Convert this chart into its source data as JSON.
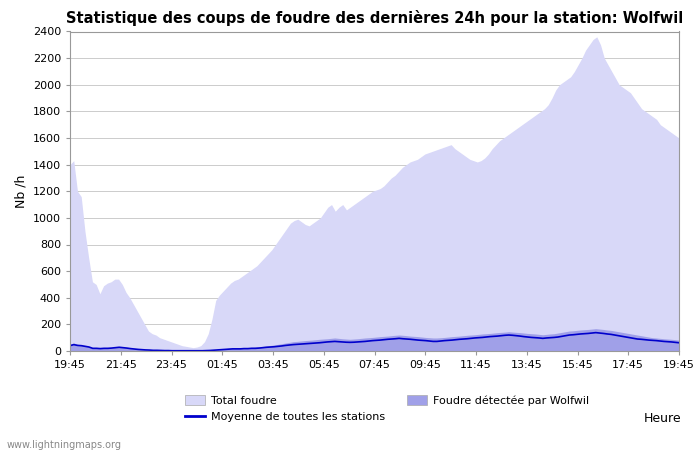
{
  "title": "Statistique des coups de foudre des dernières 24h pour la station: Wolfwil",
  "xlabel": "Heure",
  "ylabel": "Nb /h",
  "xlim_labels": [
    "19:45",
    "21:45",
    "23:45",
    "01:45",
    "03:45",
    "05:45",
    "07:45",
    "09:45",
    "11:45",
    "13:45",
    "15:45",
    "17:45",
    "19:45"
  ],
  "ylim": [
    0,
    2400
  ],
  "yticks": [
    0,
    200,
    400,
    600,
    800,
    1000,
    1200,
    1400,
    1600,
    1800,
    2000,
    2200,
    2400
  ],
  "color_total": "#d8d8f8",
  "color_station": "#a0a0e8",
  "color_mean": "#0000cc",
  "bg_color": "#ffffff",
  "grid_color": "#cccccc",
  "watermark": "www.lightningmaps.org",
  "legend_total": "Total foudre",
  "legend_mean": "Moyenne de toutes les stations",
  "legend_station": "Foudre détectée par Wolfwil",
  "total_foudre": [
    1400,
    1430,
    1200,
    1160,
    900,
    700,
    520,
    500,
    430,
    490,
    510,
    520,
    540,
    540,
    500,
    440,
    400,
    350,
    300,
    250,
    200,
    150,
    130,
    120,
    100,
    90,
    80,
    70,
    60,
    50,
    40,
    35,
    30,
    25,
    30,
    40,
    70,
    130,
    240,
    380,
    420,
    450,
    480,
    510,
    530,
    540,
    560,
    580,
    600,
    620,
    640,
    670,
    700,
    730,
    760,
    800,
    840,
    880,
    920,
    960,
    980,
    990,
    970,
    950,
    940,
    960,
    980,
    1000,
    1040,
    1080,
    1100,
    1050,
    1080,
    1100,
    1060,
    1080,
    1100,
    1120,
    1140,
    1160,
    1180,
    1200,
    1210,
    1220,
    1240,
    1270,
    1300,
    1320,
    1350,
    1380,
    1400,
    1420,
    1430,
    1440,
    1460,
    1480,
    1490,
    1500,
    1510,
    1520,
    1530,
    1540,
    1550,
    1520,
    1500,
    1480,
    1460,
    1440,
    1430,
    1420,
    1430,
    1450,
    1480,
    1520,
    1550,
    1580,
    1600,
    1620,
    1640,
    1660,
    1680,
    1700,
    1720,
    1740,
    1760,
    1780,
    1800,
    1820,
    1850,
    1900,
    1960,
    2000,
    2020,
    2040,
    2060,
    2100,
    2150,
    2200,
    2260,
    2300,
    2340,
    2360,
    2300,
    2200,
    2150,
    2100,
    2050,
    2000,
    1980,
    1960,
    1940,
    1900,
    1860,
    1820,
    1800,
    1780,
    1760,
    1740,
    1700,
    1680,
    1660,
    1640,
    1620,
    1600
  ],
  "station_foudre": [
    50,
    60,
    50,
    45,
    40,
    35,
    25,
    22,
    20,
    22,
    22,
    25,
    28,
    30,
    28,
    25,
    20,
    18,
    15,
    12,
    10,
    8,
    7,
    5,
    5,
    4,
    3,
    3,
    2,
    2,
    2,
    2,
    2,
    2,
    2,
    2,
    3,
    5,
    8,
    12,
    15,
    18,
    20,
    22,
    22,
    22,
    25,
    25,
    28,
    30,
    32,
    35,
    38,
    42,
    45,
    50,
    55,
    60,
    65,
    70,
    72,
    75,
    78,
    80,
    82,
    85,
    88,
    90,
    92,
    95,
    98,
    95,
    92,
    90,
    88,
    90,
    92,
    95,
    98,
    100,
    102,
    105,
    108,
    110,
    112,
    115,
    118,
    120,
    118,
    115,
    112,
    110,
    108,
    105,
    102,
    100,
    98,
    98,
    100,
    102,
    105,
    108,
    110,
    112,
    115,
    118,
    120,
    122,
    125,
    128,
    130,
    132,
    135,
    138,
    140,
    142,
    145,
    142,
    140,
    138,
    135,
    132,
    130,
    128,
    125,
    122,
    125,
    128,
    130,
    135,
    140,
    145,
    150,
    152,
    155,
    158,
    160,
    162,
    165,
    168,
    165,
    162,
    158,
    155,
    150,
    145,
    140,
    135,
    130,
    125,
    120,
    115,
    110,
    105,
    100,
    98,
    95,
    92,
    90,
    88,
    85,
    82
  ],
  "mean_foudre": [
    40,
    48,
    42,
    40,
    35,
    30,
    20,
    20,
    18,
    20,
    20,
    22,
    25,
    28,
    25,
    22,
    18,
    15,
    12,
    10,
    8,
    7,
    5,
    5,
    4,
    3,
    3,
    2,
    2,
    2,
    2,
    2,
    2,
    2,
    2,
    2,
    3,
    4,
    6,
    8,
    10,
    12,
    14,
    16,
    16,
    16,
    18,
    18,
    20,
    20,
    22,
    25,
    28,
    30,
    32,
    35,
    38,
    42,
    45,
    48,
    50,
    52,
    54,
    56,
    58,
    60,
    62,
    65,
    68,
    70,
    72,
    70,
    68,
    66,
    65,
    66,
    68,
    70,
    72,
    75,
    78,
    80,
    82,
    85,
    88,
    90,
    92,
    95,
    92,
    90,
    88,
    85,
    82,
    80,
    78,
    75,
    72,
    72,
    75,
    78,
    80,
    82,
    85,
    88,
    90,
    92,
    95,
    98,
    100,
    102,
    105,
    108,
    110,
    112,
    115,
    118,
    120,
    118,
    115,
    112,
    108,
    105,
    102,
    100,
    98,
    95,
    98,
    100,
    102,
    105,
    110,
    115,
    120,
    122,
    125,
    128,
    130,
    132,
    135,
    138,
    135,
    132,
    128,
    125,
    120,
    115,
    110,
    105,
    100,
    95,
    90,
    88,
    85,
    82,
    80,
    78,
    75,
    72,
    70,
    68,
    65,
    62
  ]
}
